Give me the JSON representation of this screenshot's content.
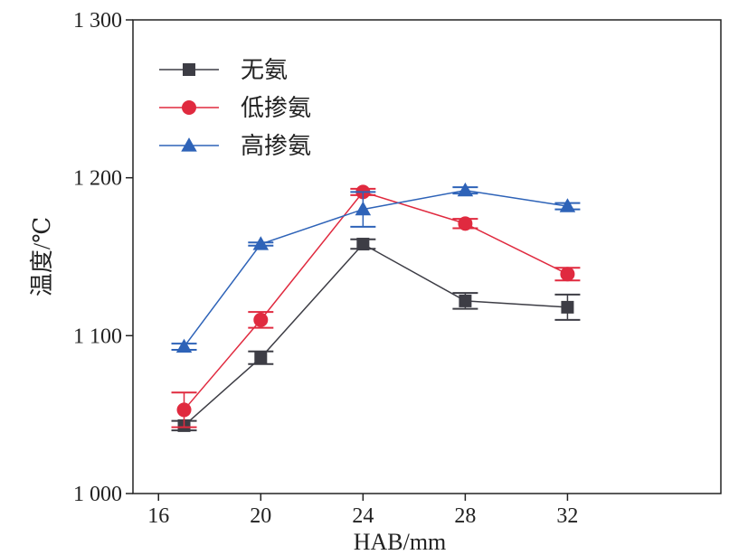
{
  "chart_data": {
    "type": "line",
    "title": "",
    "xlabel": "HAB/mm",
    "ylabel": "温度/℃",
    "xlim": [
      15,
      38
    ],
    "ylim": [
      1000,
      1300
    ],
    "xticks": [
      16,
      20,
      24,
      28,
      32
    ],
    "xtick_labels": [
      "16",
      "20",
      "24",
      "28",
      "32"
    ],
    "yticks": [
      1000,
      1100,
      1200,
      1300
    ],
    "ytick_labels": [
      "1 000",
      "1 100",
      "1 200",
      "1 300"
    ],
    "grid": false,
    "legend_position": "top-left",
    "series": [
      {
        "name": "无氨",
        "color": "#3d3d45",
        "marker": "square",
        "x": [
          17,
          20,
          24,
          28,
          32
        ],
        "y": [
          1043,
          1086,
          1158,
          1122,
          1118
        ],
        "err": [
          3,
          4,
          3,
          5,
          8
        ]
      },
      {
        "name": "低掺氨",
        "color": "#e02a3f",
        "marker": "circle",
        "x": [
          17,
          20,
          24,
          28,
          32
        ],
        "y": [
          1053,
          1110,
          1191,
          1171,
          1139
        ],
        "err": [
          11,
          5,
          2,
          3,
          4
        ]
      },
      {
        "name": "高掺氨",
        "color": "#2e63b8",
        "marker": "triangle",
        "x": [
          17,
          20,
          24,
          28,
          32
        ],
        "y": [
          1093,
          1158,
          1180,
          1192,
          1182
        ],
        "err": [
          2,
          1,
          11,
          2,
          2
        ]
      }
    ]
  }
}
